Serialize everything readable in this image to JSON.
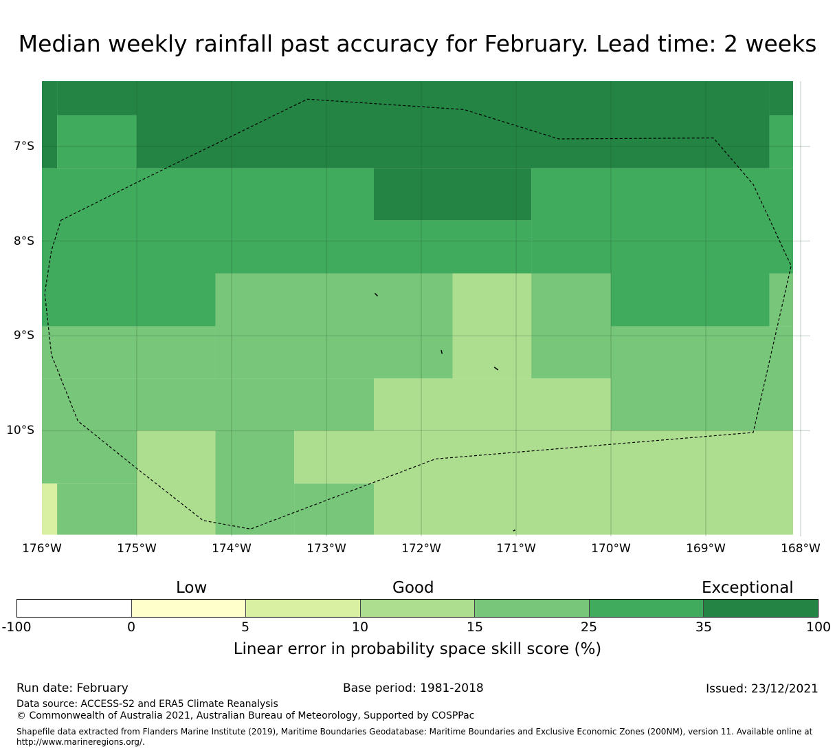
{
  "title": "Median weekly rainfall past accuracy for February. Lead time: 2 weeks",
  "map": {
    "lon_range": [
      176,
      168
    ],
    "lat_range": [
      -6.3,
      -11.1
    ],
    "lat_labels": [
      "7°S",
      "8°S",
      "9°S",
      "10°S"
    ],
    "lon_labels": [
      "176°W",
      "175°W",
      "174°W",
      "173°W",
      "172°W",
      "171°W",
      "170°W",
      "169°W",
      "168°W"
    ],
    "grid_note": "skill categories by grid cell; 0=0-5,1=5-10,2=10-15,3=15-25,4=25-35,5=35-100",
    "cells": [
      {
        "lon": [
          176.0,
          175.84
        ],
        "lat": [
          -6.3,
          -7.23
        ],
        "cat": 5
      },
      {
        "lon": [
          175.84,
          175.0
        ],
        "lat": [
          -6.3,
          -6.67
        ],
        "cat": 5
      },
      {
        "lon": [
          175.84,
          175.0
        ],
        "lat": [
          -6.67,
          -7.23
        ],
        "cat": 4
      },
      {
        "lon": [
          175.0,
          168.33
        ],
        "lat": [
          -6.3,
          -7.23
        ],
        "cat": 5
      },
      {
        "lon": [
          168.33,
          168.08
        ],
        "lat": [
          -6.3,
          -6.67
        ],
        "cat": 5
      },
      {
        "lon": [
          168.33,
          168.08
        ],
        "lat": [
          -6.67,
          -7.23
        ],
        "cat": 4
      },
      {
        "lon": [
          176.0,
          172.5
        ],
        "lat": [
          -7.23,
          -8.34
        ],
        "cat": 4
      },
      {
        "lon": [
          172.5,
          170.84
        ],
        "lat": [
          -7.23,
          -7.78
        ],
        "cat": 5
      },
      {
        "lon": [
          172.5,
          170.84
        ],
        "lat": [
          -7.78,
          -8.34
        ],
        "cat": 4
      },
      {
        "lon": [
          170.84,
          168.08
        ],
        "lat": [
          -7.23,
          -8.34
        ],
        "cat": 4
      },
      {
        "lon": [
          176.0,
          174.17
        ],
        "lat": [
          -8.34,
          -8.9
        ],
        "cat": 4
      },
      {
        "lon": [
          174.17,
          171.67
        ],
        "lat": [
          -8.34,
          -9.45
        ],
        "cat": 3
      },
      {
        "lon": [
          171.67,
          170.84
        ],
        "lat": [
          -8.34,
          -9.45
        ],
        "cat": 2
      },
      {
        "lon": [
          170.84,
          170.0
        ],
        "lat": [
          -8.34,
          -9.45
        ],
        "cat": 3
      },
      {
        "lon": [
          170.0,
          168.33
        ],
        "lat": [
          -8.34,
          -8.9
        ],
        "cat": 4
      },
      {
        "lon": [
          168.33,
          168.08
        ],
        "lat": [
          -8.34,
          -8.9
        ],
        "cat": 3
      },
      {
        "lon": [
          176.0,
          174.17
        ],
        "lat": [
          -8.9,
          -9.45
        ],
        "cat": 3
      },
      {
        "lon": [
          170.0,
          168.08
        ],
        "lat": [
          -8.9,
          -10.0
        ],
        "cat": 3
      },
      {
        "lon": [
          176.0,
          172.5
        ],
        "lat": [
          -9.45,
          -10.0
        ],
        "cat": 3
      },
      {
        "lon": [
          172.5,
          170.0
        ],
        "lat": [
          -9.45,
          -10.0
        ],
        "cat": 2
      },
      {
        "lon": [
          171.67,
          170.84
        ],
        "lat": [
          -9.45,
          -10.0
        ],
        "cat": 2
      },
      {
        "lon": [
          176.0,
          175.0
        ],
        "lat": [
          -10.0,
          -10.56
        ],
        "cat": 3
      },
      {
        "lon": [
          176.0,
          175.84
        ],
        "lat": [
          -10.56,
          -11.1
        ],
        "cat": 1
      },
      {
        "lon": [
          175.84,
          175.0
        ],
        "lat": [
          -10.56,
          -11.1
        ],
        "cat": 3
      },
      {
        "lon": [
          175.0,
          174.17
        ],
        "lat": [
          -10.0,
          -11.1
        ],
        "cat": 2
      },
      {
        "lon": [
          174.17,
          173.34
        ],
        "lat": [
          -10.0,
          -11.1
        ],
        "cat": 3
      },
      {
        "lon": [
          173.34,
          172.5
        ],
        "lat": [
          -10.0,
          -10.56
        ],
        "cat": 2
      },
      {
        "lon": [
          173.34,
          172.5
        ],
        "lat": [
          -10.56,
          -11.1
        ],
        "cat": 3
      },
      {
        "lon": [
          172.5,
          168.08
        ],
        "lat": [
          -10.0,
          -11.1
        ],
        "cat": 2
      }
    ],
    "eez_boundary": [
      [
        175.8,
        -7.78
      ],
      [
        175.0,
        -7.38
      ],
      [
        173.2,
        -6.5
      ],
      [
        171.55,
        -6.61
      ],
      [
        170.55,
        -6.92
      ],
      [
        168.92,
        -6.91
      ],
      [
        168.5,
        -7.4
      ],
      [
        168.1,
        -8.26
      ],
      [
        168.5,
        -10.02
      ],
      [
        171.85,
        -10.3
      ],
      [
        173.8,
        -11.04
      ],
      [
        174.3,
        -10.95
      ],
      [
        175.0,
        -10.4
      ],
      [
        175.62,
        -9.9
      ],
      [
        175.9,
        -9.2
      ],
      [
        175.97,
        -8.55
      ],
      [
        175.9,
        -8.1
      ],
      [
        175.8,
        -7.78
      ]
    ],
    "islands": [
      [
        [
          172.49,
          -8.55
        ],
        [
          172.46,
          -8.58
        ]
      ],
      [
        [
          171.79,
          -9.15
        ],
        [
          171.78,
          -9.19
        ]
      ],
      [
        [
          171.23,
          -9.33
        ],
        [
          171.19,
          -9.36
        ]
      ],
      [
        [
          171.03,
          -11.06
        ],
        [
          171.01,
          -11.05
        ]
      ]
    ]
  },
  "colorbar": {
    "categories": [
      "Low",
      "Good",
      "Exceptional"
    ],
    "ticks": [
      "-100",
      "0",
      "5",
      "10",
      "15",
      "25",
      "35",
      "100"
    ],
    "colors": [
      "#ffffff",
      "#ffffcc",
      "#d9f0a3",
      "#addd8e",
      "#78c679",
      "#41ab5d",
      "#238443"
    ],
    "label": "Linear error in probability space skill score (%)"
  },
  "footer": {
    "run_date": "Run date: February",
    "base_period": "Base period: 1981-2018",
    "issued": "Issued: 23/12/2021",
    "data_source": "Data source: ACCESS-S2 and ERA5 Climate Reanalysis",
    "copyright": "© Commonwealth of Australia 2021, Australian Bureau of Meteorology, Supported by COSPPac",
    "shapefile": "Shapefile data extracted from Flanders Marine Institute (2019), Maritime Boundaries Geodatabase: Maritime Boundaries and Exclusive Economic Zones (200NM), version 11. Available online at http://www.marineregions.org/."
  }
}
